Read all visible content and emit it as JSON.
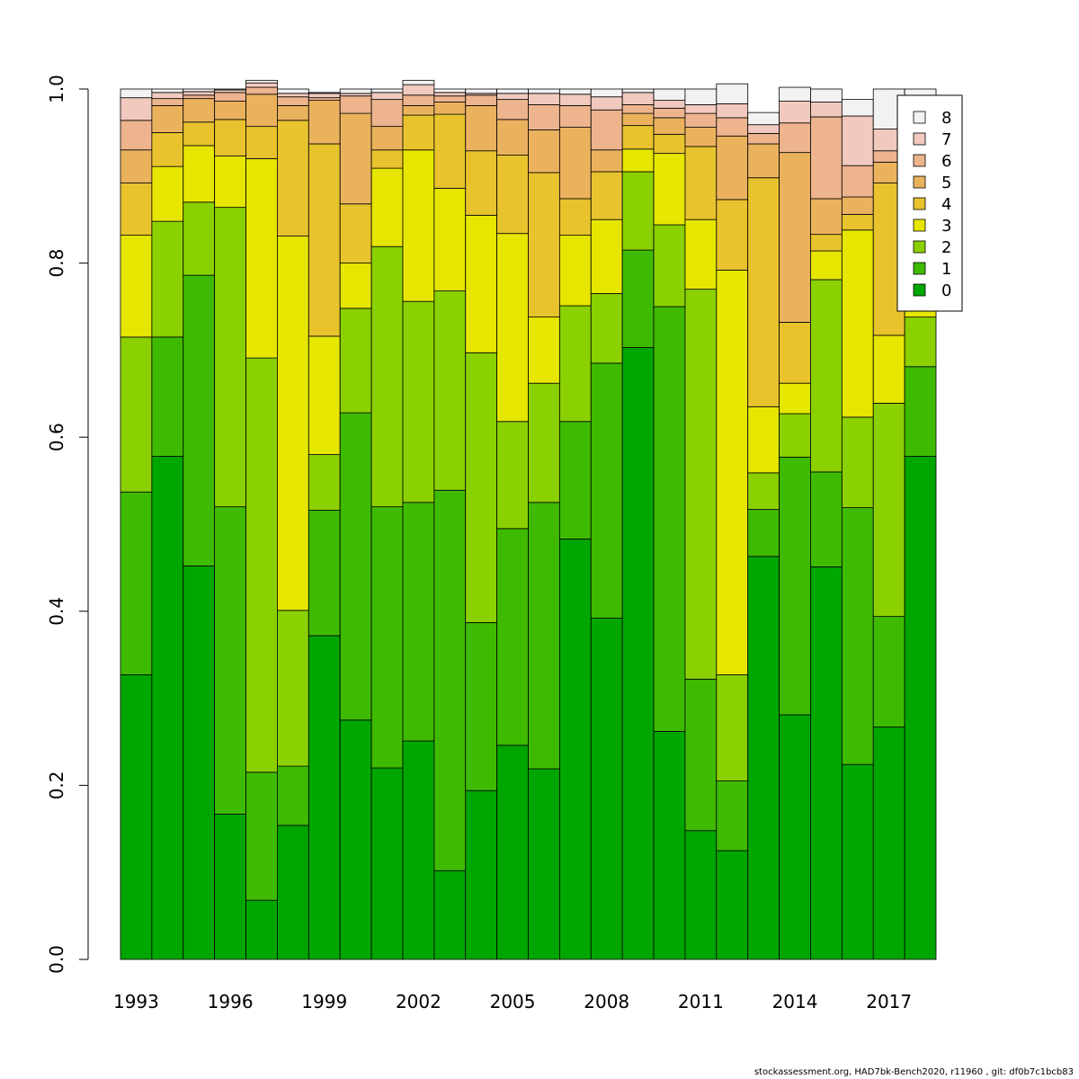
{
  "chart_data": {
    "type": "bar",
    "stacked": true,
    "years": [
      1993,
      1994,
      1995,
      1996,
      1997,
      1998,
      1999,
      2000,
      2001,
      2002,
      2003,
      2004,
      2005,
      2006,
      2007,
      2008,
      2009,
      2010,
      2011,
      2012,
      2013,
      2014,
      2015,
      2016,
      2017,
      2018
    ],
    "x_tick_labels": [
      "1993",
      "1996",
      "1999",
      "2002",
      "2005",
      "2008",
      "2011",
      "2014",
      "2017"
    ],
    "x_tick_years": [
      1993,
      1996,
      1999,
      2002,
      2005,
      2008,
      2011,
      2014,
      2017
    ],
    "y_tick_labels": [
      "0.0",
      "0.2",
      "0.4",
      "0.6",
      "0.8",
      "1.0"
    ],
    "ylim": [
      0,
      1
    ],
    "legend": {
      "position": "top-right",
      "entries": [
        "8",
        "7",
        "6",
        "5",
        "4",
        "3",
        "2",
        "1",
        "0"
      ]
    },
    "series": [
      {
        "name": "0",
        "color": "#00a600",
        "values": [
          0.327,
          0.578,
          0.452,
          0.167,
          0.068,
          0.154,
          0.372,
          0.275,
          0.22,
          0.251,
          0.102,
          0.194,
          0.246,
          0.219,
          0.483,
          0.392,
          0.703,
          0.262,
          0.148,
          0.125,
          0.463,
          0.281,
          0.451,
          0.224,
          0.267,
          0.578
        ]
      },
      {
        "name": "1",
        "color": "#3ebb00",
        "values": [
          0.21,
          0.137,
          0.334,
          0.353,
          0.147,
          0.068,
          0.144,
          0.353,
          0.3,
          0.274,
          0.437,
          0.193,
          0.249,
          0.306,
          0.135,
          0.293,
          0.112,
          0.488,
          0.174,
          0.08,
          0.054,
          0.296,
          0.109,
          0.295,
          0.127,
          0.103
        ]
      },
      {
        "name": "2",
        "color": "#8bd000",
        "values": [
          0.178,
          0.133,
          0.084,
          0.344,
          0.476,
          0.179,
          0.064,
          0.12,
          0.299,
          0.231,
          0.229,
          0.31,
          0.123,
          0.137,
          0.133,
          0.08,
          0.09,
          0.094,
          0.448,
          0.122,
          0.042,
          0.05,
          0.221,
          0.104,
          0.245,
          0.057
        ]
      },
      {
        "name": "3",
        "color": "#e6e600",
        "values": [
          0.117,
          0.063,
          0.065,
          0.059,
          0.229,
          0.43,
          0.136,
          0.052,
          0.09,
          0.174,
          0.118,
          0.158,
          0.216,
          0.076,
          0.081,
          0.085,
          0.026,
          0.082,
          0.08,
          0.465,
          0.076,
          0.035,
          0.033,
          0.215,
          0.078,
          0.05
        ]
      },
      {
        "name": "4",
        "color": "#e8c32e",
        "values": [
          0.06,
          0.039,
          0.027,
          0.042,
          0.037,
          0.133,
          0.221,
          0.068,
          0.021,
          0.04,
          0.085,
          0.074,
          0.09,
          0.166,
          0.042,
          0.055,
          0.027,
          0.022,
          0.084,
          0.081,
          0.263,
          0.07,
          0.019,
          0.018,
          0.175,
          0.065
        ]
      },
      {
        "name": "5",
        "color": "#ebb25e",
        "values": [
          0.038,
          0.031,
          0.027,
          0.021,
          0.037,
          0.017,
          0.05,
          0.104,
          0.027,
          0.011,
          0.014,
          0.052,
          0.041,
          0.049,
          0.082,
          0.025,
          0.014,
          0.019,
          0.022,
          0.073,
          0.039,
          0.195,
          0.041,
          0.02,
          0.024,
          0.05
        ]
      },
      {
        "name": "6",
        "color": "#edb48e",
        "values": [
          0.034,
          0.008,
          0.004,
          0.01,
          0.008,
          0.01,
          0.003,
          0.02,
          0.031,
          0.012,
          0.007,
          0.012,
          0.023,
          0.029,
          0.025,
          0.046,
          0.01,
          0.011,
          0.016,
          0.021,
          0.012,
          0.034,
          0.094,
          0.036,
          0.013,
          0.05
        ]
      },
      {
        "name": "7",
        "color": "#f1c9be",
        "values": [
          0.026,
          0.007,
          0.004,
          0.003,
          0.005,
          0.004,
          0.005,
          0.003,
          0.008,
          0.012,
          0.004,
          0.002,
          0.007,
          0.013,
          0.013,
          0.015,
          0.014,
          0.009,
          0.01,
          0.016,
          0.01,
          0.025,
          0.017,
          0.057,
          0.025,
          0.022
        ]
      },
      {
        "name": "8",
        "color": "#f2f2f2",
        "values": [
          0.01,
          0.004,
          0.003,
          0.001,
          0.003,
          0.005,
          0.001,
          0.005,
          0.004,
          0.005,
          0.004,
          0.005,
          0.005,
          0.005,
          0.006,
          0.009,
          0.004,
          0.013,
          0.018,
          0.023,
          0.014,
          0.016,
          0.015,
          0.019,
          0.046,
          0.025
        ]
      }
    ]
  },
  "footer": {
    "text": "stockassessment.org, HAD7bk-Bench2020, r11960 , git: df0b7c1bcb83"
  }
}
